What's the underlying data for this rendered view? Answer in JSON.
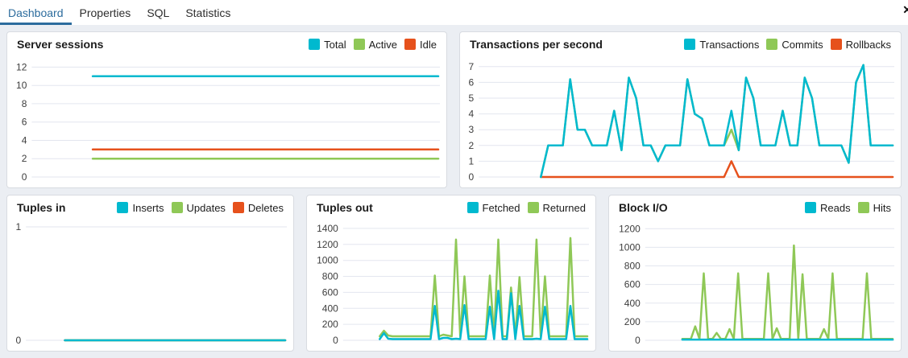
{
  "tabs": [
    {
      "label": "Dashboard",
      "active": true
    },
    {
      "label": "Properties",
      "active": false
    },
    {
      "label": "SQL",
      "active": false
    },
    {
      "label": "Statistics",
      "active": false
    }
  ],
  "close_glyph": "✕",
  "colors": {
    "accent_blue": "#2c6c9d",
    "cyan": "#00b9cf",
    "green": "#8fc857",
    "red": "#e6511c",
    "grid": "#e3e6ef",
    "panel_border": "#d8dbe1",
    "page_bg": "#ebeef3"
  },
  "chart_data": [
    {
      "type": "line",
      "title": "Server sessions",
      "legend": [
        {
          "label": "Total",
          "color": "#00b9cf"
        },
        {
          "label": "Active",
          "color": "#8fc857"
        },
        {
          "label": "Idle",
          "color": "#e6511c"
        }
      ],
      "yticks": [
        12,
        10,
        8,
        6,
        4,
        2,
        0
      ],
      "ylim": [
        0,
        13
      ],
      "x_start_frac": 0.15,
      "grid": true,
      "legend_position": "top-right",
      "series": [
        {
          "name": "Total",
          "color": "#00b9cf",
          "values": [
            11,
            11
          ]
        },
        {
          "name": "Active",
          "color": "#8fc857",
          "values": [
            2,
            2
          ]
        },
        {
          "name": "Idle",
          "color": "#e6511c",
          "values": [
            3,
            3
          ]
        }
      ]
    },
    {
      "type": "line",
      "title": "Transactions per second",
      "legend": [
        {
          "label": "Transactions",
          "color": "#00b9cf"
        },
        {
          "label": "Commits",
          "color": "#8fc857"
        },
        {
          "label": "Rollbacks",
          "color": "#e6511c"
        }
      ],
      "yticks": [
        7,
        6,
        5,
        4,
        3,
        2,
        1,
        0
      ],
      "ylim": [
        0,
        7.55
      ],
      "x_start_frac": 0.15,
      "grid": true,
      "legend_position": "top-right",
      "series": [
        {
          "name": "Transactions",
          "color": "#00b9cf",
          "values": [
            0,
            2,
            2,
            2,
            6.2,
            3,
            3,
            2,
            2,
            2,
            4.2,
            1.7,
            6.3,
            5,
            2,
            2,
            1,
            2,
            2,
            2,
            6.2,
            4,
            3.7,
            2,
            2,
            2,
            4.2,
            1.7,
            6.3,
            5,
            2,
            2,
            2,
            4.2,
            2,
            2,
            6.3,
            5,
            2,
            2,
            2,
            2,
            0.9,
            6,
            7.1,
            2,
            2,
            2,
            2
          ]
        },
        {
          "name": "Commits",
          "color": "#8fc857",
          "values": [
            0,
            2,
            2,
            2,
            6.2,
            3,
            3,
            2,
            2,
            2,
            4.2,
            1.7,
            6.3,
            5,
            2,
            2,
            1,
            2,
            2,
            2,
            6.2,
            4,
            3.7,
            2,
            2,
            2,
            3,
            1.7,
            6.3,
            5,
            2,
            2,
            2,
            4.2,
            2,
            2,
            6.3,
            5,
            2,
            2,
            2,
            2,
            0.9,
            6,
            7.1,
            2,
            2,
            2,
            2
          ]
        },
        {
          "name": "Rollbacks",
          "color": "#e6511c",
          "values": [
            0,
            0,
            0,
            0,
            0,
            0,
            0,
            0,
            0,
            0,
            0,
            0,
            0,
            0,
            0,
            0,
            0,
            0,
            0,
            0,
            0,
            0,
            0,
            0,
            0,
            0,
            1,
            0,
            0,
            0,
            0,
            0,
            0,
            0,
            0,
            0,
            0,
            0,
            0,
            0,
            0,
            0,
            0,
            0,
            0,
            0,
            0,
            0,
            0
          ]
        }
      ]
    },
    {
      "type": "line",
      "title": "Tuples in",
      "legend": [
        {
          "label": "Inserts",
          "color": "#00b9cf"
        },
        {
          "label": "Updates",
          "color": "#8fc857"
        },
        {
          "label": "Deletes",
          "color": "#e6511c"
        }
      ],
      "yticks": [
        1,
        0
      ],
      "ylim": [
        0,
        1.05
      ],
      "x_start_frac": 0.15,
      "grid": true,
      "legend_position": "top-right",
      "series": [
        {
          "name": "Inserts",
          "color": "#00b9cf",
          "values": [
            0,
            0
          ]
        },
        {
          "name": "Updates",
          "color": "#8fc857",
          "values": [
            0,
            0
          ]
        },
        {
          "name": "Deletes",
          "color": "#e6511c",
          "values": [
            0,
            0
          ]
        }
      ]
    },
    {
      "type": "line",
      "title": "Tuples out",
      "legend": [
        {
          "label": "Fetched",
          "color": "#00b9cf"
        },
        {
          "label": "Returned",
          "color": "#8fc857"
        }
      ],
      "yticks": [
        1400,
        1200,
        1000,
        800,
        600,
        400,
        200,
        0
      ],
      "ylim": [
        0,
        1490
      ],
      "x_start_frac": 0.15,
      "grid": true,
      "legend_position": "top-right",
      "series": [
        {
          "name": "Fetched",
          "color": "#00b9cf",
          "values": [
            15,
            90,
            20,
            15,
            15,
            15,
            15,
            15,
            15,
            15,
            15,
            15,
            15,
            430,
            15,
            30,
            30,
            15,
            20,
            15,
            440,
            15,
            15,
            15,
            15,
            15,
            420,
            15,
            620,
            15,
            15,
            590,
            15,
            430,
            15,
            15,
            15,
            20,
            15,
            420,
            15,
            15,
            15,
            15,
            15,
            430,
            15,
            15,
            15,
            15
          ]
        },
        {
          "name": "Returned",
          "color": "#8fc857",
          "values": [
            50,
            120,
            60,
            50,
            50,
            50,
            50,
            50,
            50,
            50,
            50,
            50,
            50,
            810,
            50,
            70,
            60,
            50,
            1260,
            50,
            800,
            50,
            50,
            50,
            50,
            50,
            810,
            50,
            1260,
            50,
            50,
            660,
            50,
            790,
            50,
            50,
            50,
            1260,
            50,
            800,
            50,
            50,
            50,
            50,
            50,
            1280,
            50,
            50,
            50,
            50
          ]
        }
      ]
    },
    {
      "type": "line",
      "title": "Block I/O",
      "legend": [
        {
          "label": "Reads",
          "color": "#00b9cf"
        },
        {
          "label": "Hits",
          "color": "#8fc857"
        }
      ],
      "yticks": [
        1200,
        1000,
        800,
        600,
        400,
        200,
        0
      ],
      "ylim": [
        0,
        1280
      ],
      "x_start_frac": 0.15,
      "grid": true,
      "legend_position": "top-right",
      "series": [
        {
          "name": "Reads",
          "color": "#00b9cf",
          "values": [
            8,
            8
          ]
        },
        {
          "name": "Hits",
          "color": "#8fc857",
          "values": [
            15,
            15,
            15,
            150,
            15,
            720,
            15,
            15,
            80,
            15,
            15,
            120,
            15,
            720,
            15,
            15,
            15,
            15,
            15,
            15,
            720,
            15,
            130,
            15,
            15,
            15,
            1020,
            15,
            710,
            15,
            15,
            15,
            15,
            120,
            15,
            720,
            15,
            15,
            15,
            15,
            15,
            15,
            15,
            720,
            15,
            15,
            15,
            15,
            15,
            15
          ]
        }
      ]
    }
  ]
}
